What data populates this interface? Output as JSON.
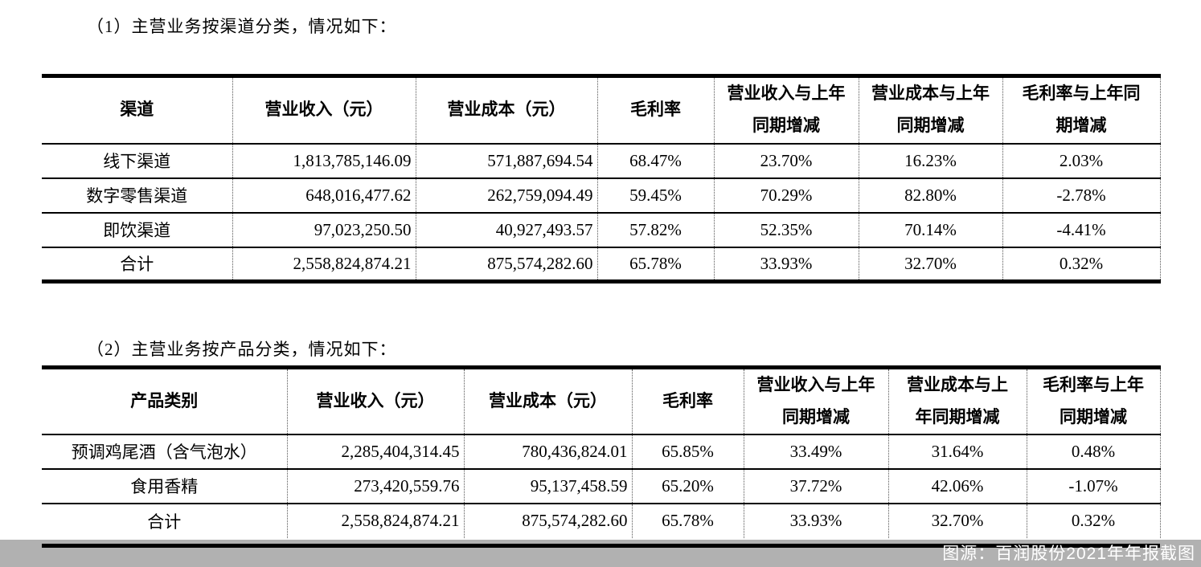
{
  "sections": [
    {
      "title": "（1）主营业务按渠道分类，情况如下："
    },
    {
      "title": "（2）主营业务按产品分类，情况如下："
    }
  ],
  "tables": [
    {
      "headers": [
        "渠道",
        "营业收入（元）",
        "营业成本（元）",
        "毛利率",
        "营业收入与上年\n同期增减",
        "营业成本与上年\n同期增减",
        "毛利率与上年同\n期增减"
      ],
      "rows": [
        [
          "线下渠道",
          "1,813,785,146.09",
          "571,887,694.54",
          "68.47%",
          "23.70%",
          "16.23%",
          "2.03%"
        ],
        [
          "数字零售渠道",
          "648,016,477.62",
          "262,759,094.49",
          "59.45%",
          "70.29%",
          "82.80%",
          "-2.78%"
        ],
        [
          "即饮渠道",
          "97,023,250.50",
          "40,927,493.57",
          "57.82%",
          "52.35%",
          "70.14%",
          "-4.41%"
        ],
        [
          "合计",
          "2,558,824,874.21",
          "875,574,282.60",
          "65.78%",
          "33.93%",
          "32.70%",
          "0.32%"
        ]
      ]
    },
    {
      "headers": [
        "产品类别",
        "营业收入（元）",
        "营业成本（元）",
        "毛利率",
        "营业收入与上年\n同期增减",
        "营业成本与上\n年同期增减",
        "毛利率与上年\n同期增减"
      ],
      "rows": [
        [
          "预调鸡尾酒（含气泡水）",
          "2,285,404,314.45",
          "780,436,824.01",
          "65.85%",
          "33.49%",
          "31.64%",
          "0.48%"
        ],
        [
          "食用香精",
          "273,420,559.76",
          "95,137,458.59",
          "65.20%",
          "37.72%",
          "42.06%",
          "-1.07%"
        ],
        [
          "合计",
          "2,558,824,874.21",
          "875,574,282.60",
          "65.78%",
          "33.93%",
          "32.70%",
          "0.32%"
        ]
      ]
    }
  ],
  "caption": {
    "text": "图源：百润股份2021年年报截图",
    "strip_bg": "#b1b1b1",
    "text_color": "#ffffff"
  }
}
